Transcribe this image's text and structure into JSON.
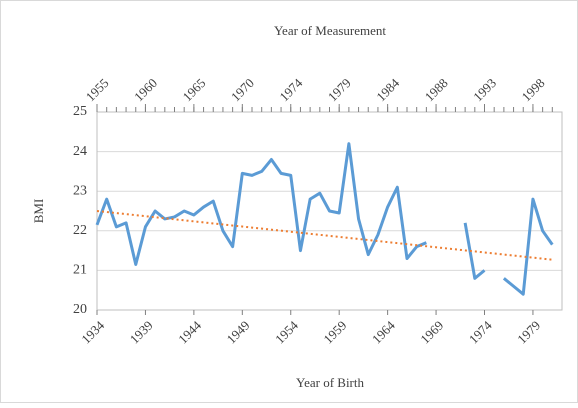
{
  "chart_data": {
    "type": "line",
    "x_label": "Year of Birth",
    "x2_label": "Year of Measurement",
    "y_label": "BMI",
    "x": [
      1934,
      1935,
      1936,
      1937,
      1938,
      1939,
      1940,
      1941,
      1942,
      1943,
      1944,
      1945,
      1946,
      1947,
      1948,
      1949,
      1950,
      1951,
      1952,
      1953,
      1954,
      1955,
      1956,
      1957,
      1958,
      1959,
      1960,
      1961,
      1962,
      1963,
      1964,
      1965,
      1966,
      1967,
      1968,
      1969,
      1970,
      1971,
      1972,
      1973,
      1974,
      1975,
      1976,
      1977,
      1978,
      1979,
      1980,
      1981
    ],
    "series": [
      {
        "color": "#5b9bd5",
        "values": [
          22.15,
          22.8,
          22.1,
          22.2,
          21.15,
          22.1,
          22.5,
          22.3,
          22.35,
          22.5,
          22.4,
          22.6,
          22.75,
          22.0,
          21.6,
          23.45,
          23.4,
          23.5,
          23.8,
          23.45,
          23.4,
          21.5,
          22.8,
          22.95,
          22.5,
          22.45,
          24.2,
          22.3,
          21.4,
          21.9,
          22.6,
          23.1,
          21.3,
          21.6,
          21.7,
          null,
          null,
          null,
          22.2,
          20.8,
          21.0,
          null,
          20.8,
          20.6,
          20.4,
          22.8,
          22.0,
          21.65
        ]
      }
    ],
    "trendline": {
      "color": "#ed7d31",
      "x": [
        1934,
        1981
      ],
      "values": [
        22.5,
        21.27
      ]
    },
    "xlim": [
      1934,
      1982
    ],
    "xticks": [
      1934,
      1939,
      1944,
      1949,
      1954,
      1959,
      1964,
      1969,
      1974,
      1979
    ],
    "x2ticks": [
      {
        "value": 1934,
        "label": "1955"
      },
      {
        "value": 1939,
        "label": "1960"
      },
      {
        "value": 1944,
        "label": "1965"
      },
      {
        "value": 1949,
        "label": "1970"
      },
      {
        "value": 1954,
        "label": "1974"
      },
      {
        "value": 1959,
        "label": "1979"
      },
      {
        "value": 1964,
        "label": "1984"
      },
      {
        "value": 1969,
        "label": "1988"
      },
      {
        "value": 1974,
        "label": "1993"
      },
      {
        "value": 1979,
        "label": "1998"
      }
    ],
    "ylim": [
      20,
      25
    ],
    "yticks": [
      20,
      21,
      22,
      23,
      24,
      25
    ],
    "grid": true
  }
}
